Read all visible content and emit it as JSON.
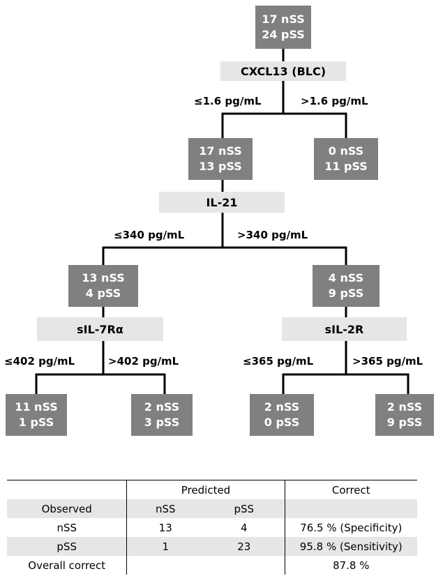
{
  "tree": {
    "root": {
      "line1": "17 nSS",
      "line2": "24 pSS"
    },
    "split1": {
      "label": "CXCL13 (BLC)",
      "left_edge": "≤1.6 pg/mL",
      "right_edge": ">1.6 pg/mL"
    },
    "n_left": {
      "line1": "17 nSS",
      "line2": "13 pSS"
    },
    "n_right": {
      "line1": "0 nSS",
      "line2": "11 pSS"
    },
    "split2": {
      "label": "IL-21",
      "left_edge": "≤340 pg/mL",
      "right_edge": ">340 pg/mL"
    },
    "n_ll": {
      "line1": "13 nSS",
      "line2": "4 pSS"
    },
    "n_lr": {
      "line1": "4 nSS",
      "line2": "9 pSS"
    },
    "split3": {
      "label": "sIL-7Rα",
      "left_edge": "≤402 pg/mL",
      "right_edge": ">402 pg/mL"
    },
    "split4": {
      "label": "sIL-2R",
      "left_edge": "≤365 pg/mL",
      "right_edge": ">365 pg/mL"
    },
    "leaf1": {
      "line1": "11 nSS",
      "line2": "1 pSS"
    },
    "leaf2": {
      "line1": "2 nSS",
      "line2": "3 pSS"
    },
    "leaf3": {
      "line1": "2 nSS",
      "line2": "0 pSS"
    },
    "leaf4": {
      "line1": "2 nSS",
      "line2": "9 pSS"
    }
  },
  "table": {
    "predicted_header": "Predicted",
    "correct_header": "Correct",
    "observed_label": "Observed",
    "col_nss": "nSS",
    "col_pss": "pSS",
    "rows": [
      {
        "label": "nSS",
        "nss": "13",
        "pss": "4",
        "correct": "76.5 % (Specificity)"
      },
      {
        "label": "pSS",
        "nss": "1",
        "pss": "23",
        "correct": "95.8 % (Sensitivity)"
      }
    ],
    "overall_label": "Overall correct",
    "overall_value": "87.8 %"
  },
  "colors": {
    "node_fill": "#808080",
    "split_fill": "#e6e6e6",
    "stripe": "#e6e6e6"
  }
}
